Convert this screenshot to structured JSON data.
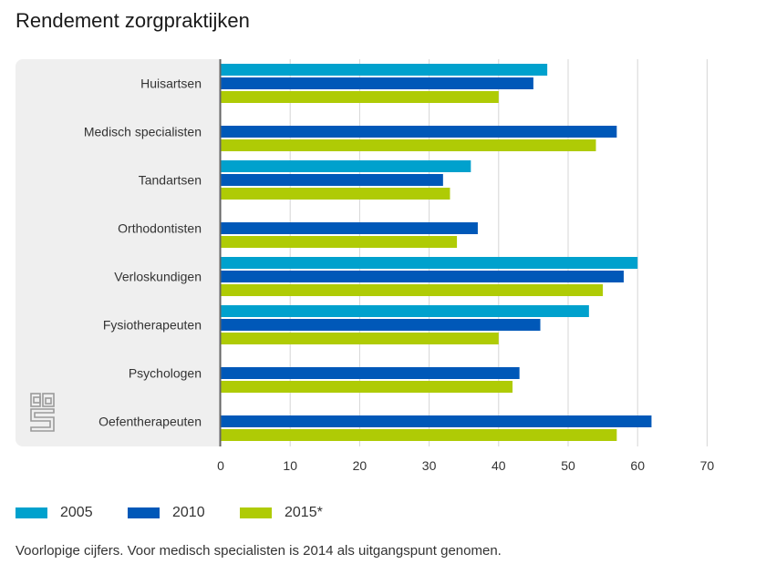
{
  "page": {
    "title": "Rendement zorgpraktijken",
    "footnote": "Voorlopige cijfers. Voor medisch specialisten is 2014 als uitgangspunt genomen.",
    "logo_icon": "cbs-logo-icon"
  },
  "chart_data": {
    "type": "bar",
    "orientation": "horizontal",
    "title": "Rendement zorgpraktijken",
    "xlabel": "",
    "ylabel": "",
    "xlim": [
      0,
      70
    ],
    "xticks": [
      0,
      10,
      20,
      30,
      40,
      50,
      60,
      70
    ],
    "grid": true,
    "legend_position": "bottom-left",
    "categories": [
      "Huisartsen",
      "Medisch specialisten",
      "Tandartsen",
      "Orthodontisten",
      "Verloskundigen",
      "Fysiotherapeuten",
      "Psychologen",
      "Oefentherapeuten"
    ],
    "series": [
      {
        "name": "2005",
        "color": "#00a1cd",
        "values": [
          47,
          null,
          36,
          null,
          60,
          53,
          null,
          null
        ]
      },
      {
        "name": "2010",
        "color": "#0058b8",
        "values": [
          45,
          57,
          32,
          37,
          58,
          46,
          43,
          62
        ]
      },
      {
        "name": "2015*",
        "color": "#afcb05",
        "values": [
          40,
          54,
          33,
          34,
          55,
          40,
          42,
          57
        ]
      }
    ],
    "annotations": [
      "Voorlopige cijfers. Voor medisch specialisten is 2014 als uitgangspunt genomen."
    ]
  }
}
